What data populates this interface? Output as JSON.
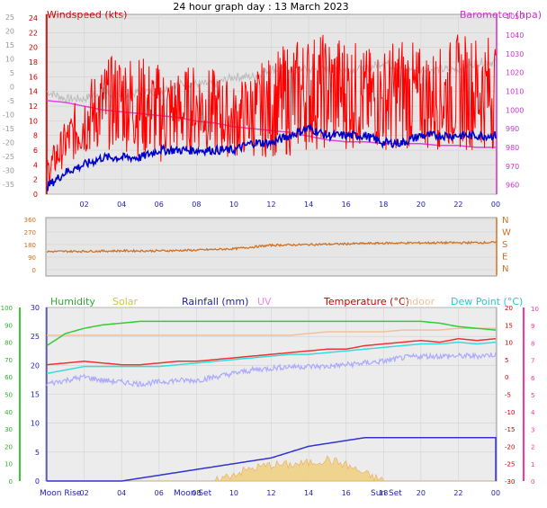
{
  "title": "24 hour graph day : 13 March 2023",
  "colors": {
    "panel_bg": "#e6e6e6",
    "wind": "#ff0000",
    "wind_avg": "#0000cc",
    "baro": "#dd44dd",
    "baro_grey": "#bbbbbb",
    "dir": "#d07020",
    "humidity": "#33cc33",
    "solar": "#cccc00",
    "rain": "#3333cc",
    "uv": "#ee88ee",
    "temp": "#ee3333",
    "indoor": "#f0c0a0",
    "dew": "#33dddd",
    "apparent": "#aaaaff",
    "left_axis": "#33cc33",
    "right_axis": "#ff3399"
  },
  "chart_data": [
    {
      "type": "line",
      "name": "wind_baro",
      "left_label": "Windspeed (kts)",
      "right_label": "Barometer (hpa)",
      "x_ticks": [
        "02",
        "04",
        "06",
        "08",
        "10",
        "12",
        "14",
        "16",
        "18",
        "20",
        "22",
        "00"
      ],
      "left_ticks_inner": [
        24,
        22,
        20,
        18,
        16,
        14,
        12,
        10,
        8,
        6,
        4,
        2,
        0
      ],
      "left_ticks_outer": [
        25,
        20,
        15,
        10,
        5,
        0,
        -5,
        -10,
        -15,
        -20,
        -25,
        -30,
        -35
      ],
      "right_ticks": [
        1050,
        1040,
        1030,
        1020,
        1010,
        1000,
        990,
        980,
        970,
        960
      ],
      "wind_ylim": [
        0,
        24.5
      ],
      "baro_ylim": [
        955,
        1051
      ],
      "x_hours": [
        0,
        1,
        2,
        3,
        4,
        5,
        6,
        7,
        8,
        9,
        10,
        11,
        12,
        13,
        14,
        15,
        16,
        17,
        18,
        19,
        20,
        21,
        22,
        23,
        24
      ],
      "gust_kts": [
        3,
        7,
        10,
        12,
        13,
        12,
        11,
        11,
        12,
        11,
        10,
        11,
        12,
        13,
        14,
        14,
        14,
        13,
        13,
        14,
        13,
        13,
        14,
        14,
        14
      ],
      "gust_spread": [
        2,
        3,
        5,
        6,
        7,
        7,
        7,
        6,
        6,
        6,
        5,
        6,
        7,
        8,
        8,
        8,
        8,
        7,
        7,
        8,
        7,
        7,
        8,
        8,
        8
      ],
      "avg_kts": [
        1,
        3,
        4,
        5,
        5,
        5,
        6,
        6,
        6,
        6,
        6,
        7,
        7,
        8,
        9,
        8,
        8,
        8,
        7,
        7,
        8,
        8,
        8,
        8,
        8
      ],
      "baro_hpa": [
        1005,
        1004,
        1002,
        1000,
        999,
        998,
        997,
        996,
        994,
        993,
        991,
        990,
        989,
        988,
        986,
        984,
        983,
        983,
        982,
        982,
        982,
        981,
        981,
        980,
        980
      ],
      "baro_grey_wind_kts": [
        14,
        13,
        13,
        14,
        13,
        14,
        14,
        15,
        15,
        15,
        16,
        16,
        17,
        17,
        17,
        17,
        17,
        17,
        18,
        17,
        17,
        17,
        17,
        18,
        18
      ]
    },
    {
      "type": "line",
      "name": "wind_direction",
      "y_ticks": [
        360,
        270,
        180,
        90,
        0
      ],
      "compass": [
        "N",
        "W",
        "S",
        "E",
        "N"
      ],
      "ylim": [
        0,
        360
      ],
      "x_hours": [
        0,
        2,
        4,
        6,
        8,
        10,
        12,
        14,
        16,
        18,
        20,
        22,
        24
      ],
      "direction_deg": [
        130,
        132,
        135,
        135,
        140,
        150,
        175,
        180,
        185,
        190,
        192,
        193,
        195
      ]
    },
    {
      "type": "line",
      "name": "weather",
      "labels": [
        "Humidity",
        "Solar",
        "Rainfall (mm)",
        "UV",
        "Temperature (°C)",
        "Indoor",
        "Dew Point (°C)"
      ],
      "x_ticks": [
        "02",
        "04",
        "06",
        "08",
        "10",
        "12",
        "14",
        "16",
        "18",
        "20",
        "22",
        "00"
      ],
      "moon_labels": [
        "Moon Rise",
        "Moon Set",
        "Sun Set"
      ],
      "hum_ticks": [
        100,
        90,
        80,
        70,
        60,
        50,
        40,
        30,
        20,
        10,
        0
      ],
      "rain_ticks": [
        30,
        25,
        20,
        15,
        10,
        5,
        0
      ],
      "temp_ticks": [
        20,
        15,
        10,
        5,
        0,
        -5,
        -10,
        -15,
        -20,
        -25,
        -30
      ],
      "uv_ticks": [
        10,
        9,
        8,
        7,
        6,
        5,
        4,
        3,
        2,
        1,
        0
      ],
      "humidity_pct": [
        78,
        85,
        88,
        90,
        91,
        92,
        92,
        92,
        92,
        92,
        92,
        92,
        92,
        92,
        92,
        92,
        92,
        92,
        92,
        92,
        92,
        91,
        89,
        88,
        87
      ],
      "temp_c": [
        3.5,
        4,
        4.5,
        4,
        3.5,
        3.5,
        4,
        4.5,
        4.5,
        5,
        5.5,
        6,
        6.5,
        7,
        7.5,
        8,
        8,
        9,
        9.5,
        10,
        10.5,
        10,
        11,
        10.5,
        11
      ],
      "dew_c": [
        1,
        2,
        3,
        3,
        3,
        3,
        3,
        3.5,
        4,
        4.5,
        5,
        5.5,
        6,
        6.5,
        6.5,
        7,
        7.5,
        8,
        8.5,
        9,
        9.5,
        9.5,
        10,
        9.5,
        10
      ],
      "apparent_c": [
        -2,
        -1,
        0,
        -1,
        -1.5,
        -2,
        -1.5,
        -1,
        -1,
        0,
        1,
        2,
        2.5,
        3,
        3,
        3,
        3.5,
        4,
        4.5,
        5.5,
        6,
        6,
        6,
        6,
        6.5
      ],
      "indoor_c": [
        12,
        12,
        12,
        12,
        12,
        12,
        12,
        12,
        12,
        12,
        12,
        12,
        12,
        12,
        12.5,
        13,
        13,
        13,
        13,
        13.5,
        13.5,
        13.5,
        14,
        14,
        14
      ],
      "rain_mm": [
        0,
        0,
        0,
        0,
        0,
        0.5,
        1,
        1.5,
        2,
        2.5,
        3,
        3.5,
        4,
        5,
        6,
        6.5,
        7,
        7.5,
        7.5,
        7.5,
        7.5,
        7.5,
        7.5,
        7.5,
        7.5
      ],
      "solar_rel": [
        0,
        0,
        0,
        0,
        0,
        0,
        0,
        0,
        0,
        0,
        0.2,
        0.35,
        0.45,
        0.45,
        0.5,
        0.6,
        0.45,
        0.2,
        0,
        0,
        0,
        0,
        0,
        0,
        0
      ],
      "rain_ylim": [
        0,
        30
      ]
    }
  ]
}
